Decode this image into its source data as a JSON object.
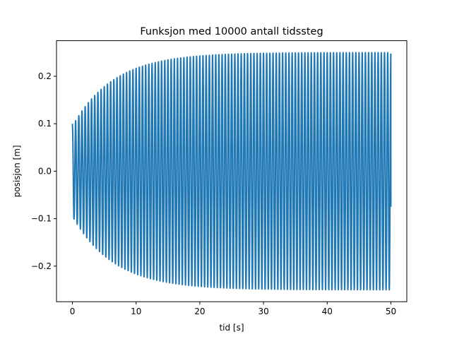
{
  "chart_data": {
    "type": "line",
    "title": "Funksjon med 10000 antall tidssteg",
    "xlabel": "tid [s]",
    "ylabel": "posisjon [m]",
    "xlim": [
      -2.5,
      52.5
    ],
    "ylim": [
      -0.275,
      0.275
    ],
    "xticks": [
      0,
      10,
      20,
      30,
      40,
      50
    ],
    "xtick_labels": [
      "0",
      "10",
      "20",
      "30",
      "40",
      "50"
    ],
    "yticks": [
      -0.2,
      -0.1,
      0.0,
      0.1,
      0.2
    ],
    "ytick_labels": [
      "−0.2",
      "−0.1",
      "0.0",
      "0.1",
      "0.2"
    ],
    "grid": false,
    "series": [
      {
        "color": "#1f77b4",
        "x_range": [
          0,
          50
        ],
        "samples": 10000,
        "initial_value": 0.1,
        "final_value": -0.075,
        "envelope": {
          "start_amplitude": 0.095,
          "steady_amplitude": 0.25,
          "time_constant": 6.5
        },
        "oscillation_period": 0.5
      }
    ]
  }
}
